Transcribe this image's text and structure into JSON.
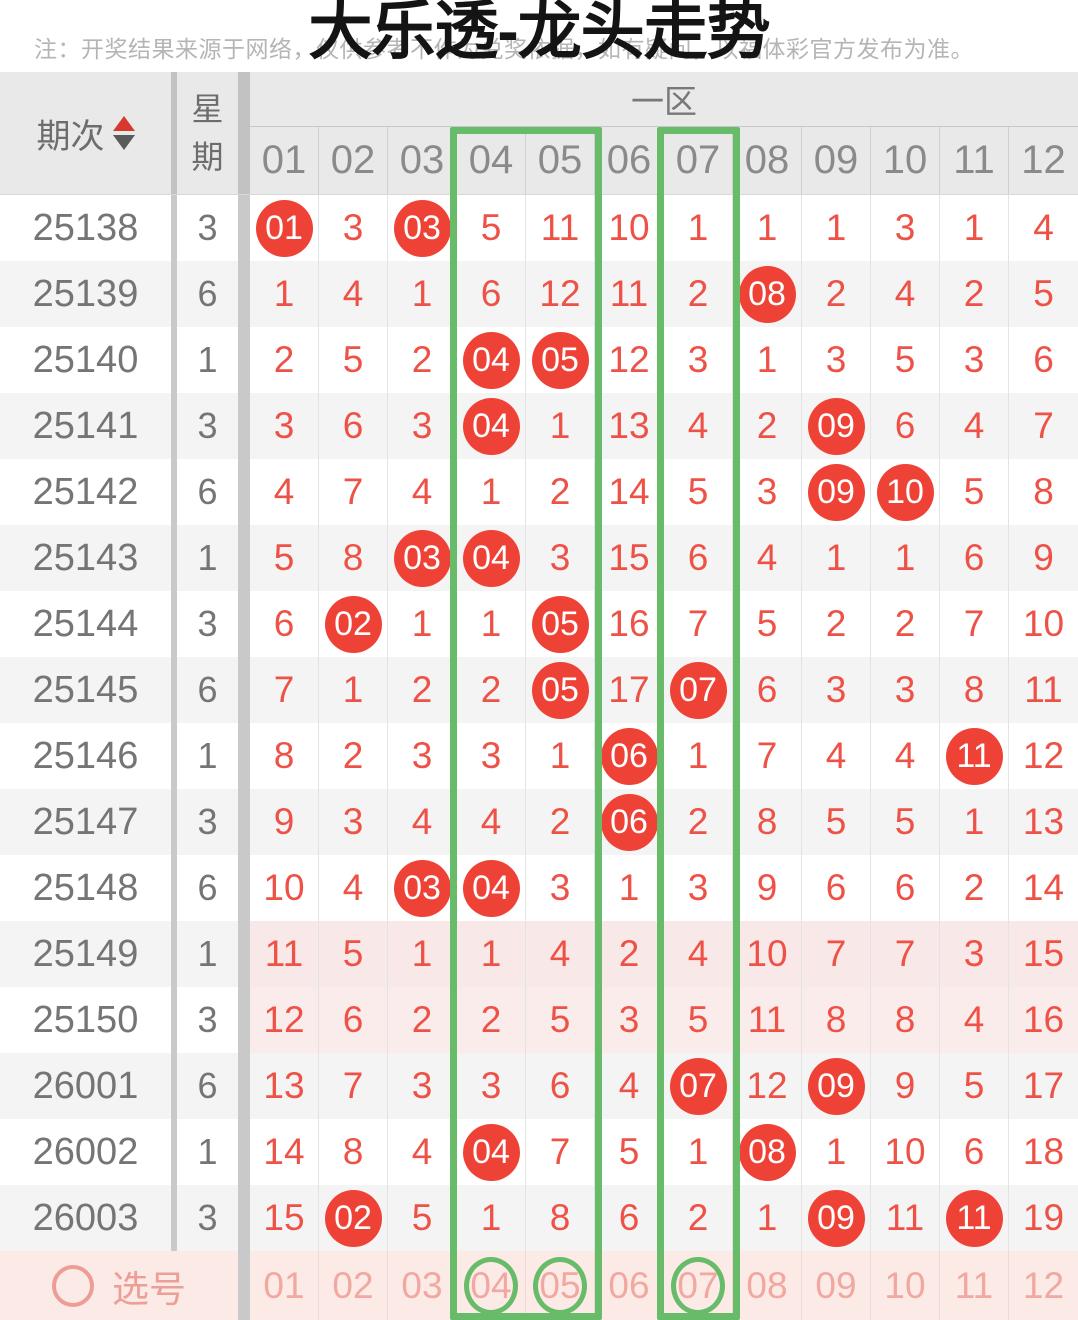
{
  "note": "注：开奖结果来源于网络，仅供参考不作为兑奖依据，如有疑问，以福体彩官方发布为准。",
  "title": "大乐透-龙头走势",
  "table": {
    "period_header": "期次",
    "week_header": "星期",
    "zone_header": "一区",
    "columns": [
      "01",
      "02",
      "03",
      "04",
      "05",
      "06",
      "07",
      "08",
      "09",
      "10",
      "11",
      "12"
    ],
    "rows": [
      {
        "period": "25138",
        "week": "3",
        "zebra": "white",
        "pink": false,
        "values": [
          "01",
          3,
          "03",
          5,
          11,
          10,
          1,
          1,
          1,
          3,
          1,
          4
        ],
        "hits": [
          0,
          2
        ]
      },
      {
        "period": "25139",
        "week": "6",
        "zebra": "gray",
        "pink": false,
        "values": [
          1,
          4,
          1,
          6,
          12,
          11,
          2,
          "08",
          2,
          4,
          2,
          5
        ],
        "hits": [
          7
        ]
      },
      {
        "period": "25140",
        "week": "1",
        "zebra": "white",
        "pink": false,
        "values": [
          2,
          5,
          2,
          "04",
          "05",
          12,
          3,
          1,
          3,
          5,
          3,
          6
        ],
        "hits": [
          3,
          4
        ]
      },
      {
        "period": "25141",
        "week": "3",
        "zebra": "gray",
        "pink": false,
        "values": [
          3,
          6,
          3,
          "04",
          1,
          13,
          4,
          2,
          "09",
          6,
          4,
          7
        ],
        "hits": [
          3,
          8
        ]
      },
      {
        "period": "25142",
        "week": "6",
        "zebra": "white",
        "pink": false,
        "values": [
          4,
          7,
          4,
          1,
          2,
          14,
          5,
          3,
          "09",
          "10",
          5,
          8
        ],
        "hits": [
          8,
          9
        ]
      },
      {
        "period": "25143",
        "week": "1",
        "zebra": "gray",
        "pink": false,
        "values": [
          5,
          8,
          "03",
          "04",
          3,
          15,
          6,
          4,
          1,
          1,
          6,
          9
        ],
        "hits": [
          2,
          3
        ]
      },
      {
        "period": "25144",
        "week": "3",
        "zebra": "white",
        "pink": false,
        "values": [
          6,
          "02",
          1,
          1,
          "05",
          16,
          7,
          5,
          2,
          2,
          7,
          10
        ],
        "hits": [
          1,
          4
        ]
      },
      {
        "period": "25145",
        "week": "6",
        "zebra": "gray",
        "pink": false,
        "values": [
          7,
          1,
          2,
          2,
          "05",
          17,
          "07",
          6,
          3,
          3,
          8,
          11
        ],
        "hits": [
          4,
          6
        ]
      },
      {
        "period": "25146",
        "week": "1",
        "zebra": "white",
        "pink": false,
        "values": [
          8,
          2,
          3,
          3,
          1,
          "06",
          1,
          7,
          4,
          4,
          "11",
          12
        ],
        "hits": [
          5,
          10
        ]
      },
      {
        "period": "25147",
        "week": "3",
        "zebra": "gray",
        "pink": false,
        "values": [
          9,
          3,
          4,
          4,
          2,
          "06",
          2,
          8,
          5,
          5,
          1,
          13
        ],
        "hits": [
          5
        ]
      },
      {
        "period": "25148",
        "week": "6",
        "zebra": "white",
        "pink": false,
        "values": [
          10,
          4,
          "03",
          "04",
          3,
          1,
          3,
          9,
          6,
          6,
          2,
          14
        ],
        "hits": [
          2,
          3
        ]
      },
      {
        "period": "25149",
        "week": "1",
        "zebra": "gray",
        "pink": true,
        "values": [
          11,
          5,
          1,
          1,
          4,
          2,
          4,
          10,
          7,
          7,
          3,
          15
        ],
        "hits": []
      },
      {
        "period": "25150",
        "week": "3",
        "zebra": "white",
        "pink": true,
        "values": [
          12,
          6,
          2,
          2,
          5,
          3,
          5,
          11,
          8,
          8,
          4,
          16
        ],
        "hits": []
      },
      {
        "period": "26001",
        "week": "6",
        "zebra": "gray",
        "pink": false,
        "values": [
          13,
          7,
          3,
          3,
          6,
          4,
          "07",
          12,
          "09",
          9,
          5,
          17
        ],
        "hits": [
          6,
          8
        ]
      },
      {
        "period": "26002",
        "week": "1",
        "zebra": "white",
        "pink": false,
        "values": [
          14,
          8,
          4,
          "04",
          7,
          5,
          1,
          "08",
          1,
          10,
          6,
          18
        ],
        "hits": [
          3,
          7
        ]
      },
      {
        "period": "26003",
        "week": "3",
        "zebra": "gray",
        "pink": false,
        "values": [
          15,
          "02",
          5,
          1,
          8,
          6,
          2,
          1,
          "09",
          11,
          "11",
          19
        ],
        "hits": [
          1,
          8,
          10
        ]
      }
    ]
  },
  "footer": {
    "label": "选号",
    "numbers": [
      "01",
      "02",
      "03",
      "04",
      "05",
      "06",
      "07",
      "08",
      "09",
      "10",
      "11",
      "12"
    ],
    "selected": [
      "04",
      "05",
      "07"
    ]
  },
  "highlight": {
    "boxes": [
      [
        "04",
        "05"
      ],
      [
        "07"
      ]
    ],
    "color": "#68bb68"
  },
  "colors": {
    "ball_red": "#ee4237",
    "number_red": "#ee5247",
    "pink_row": "#fbecec",
    "footer_pink": "#fceae7",
    "header_gray": "#e9e9e9"
  }
}
